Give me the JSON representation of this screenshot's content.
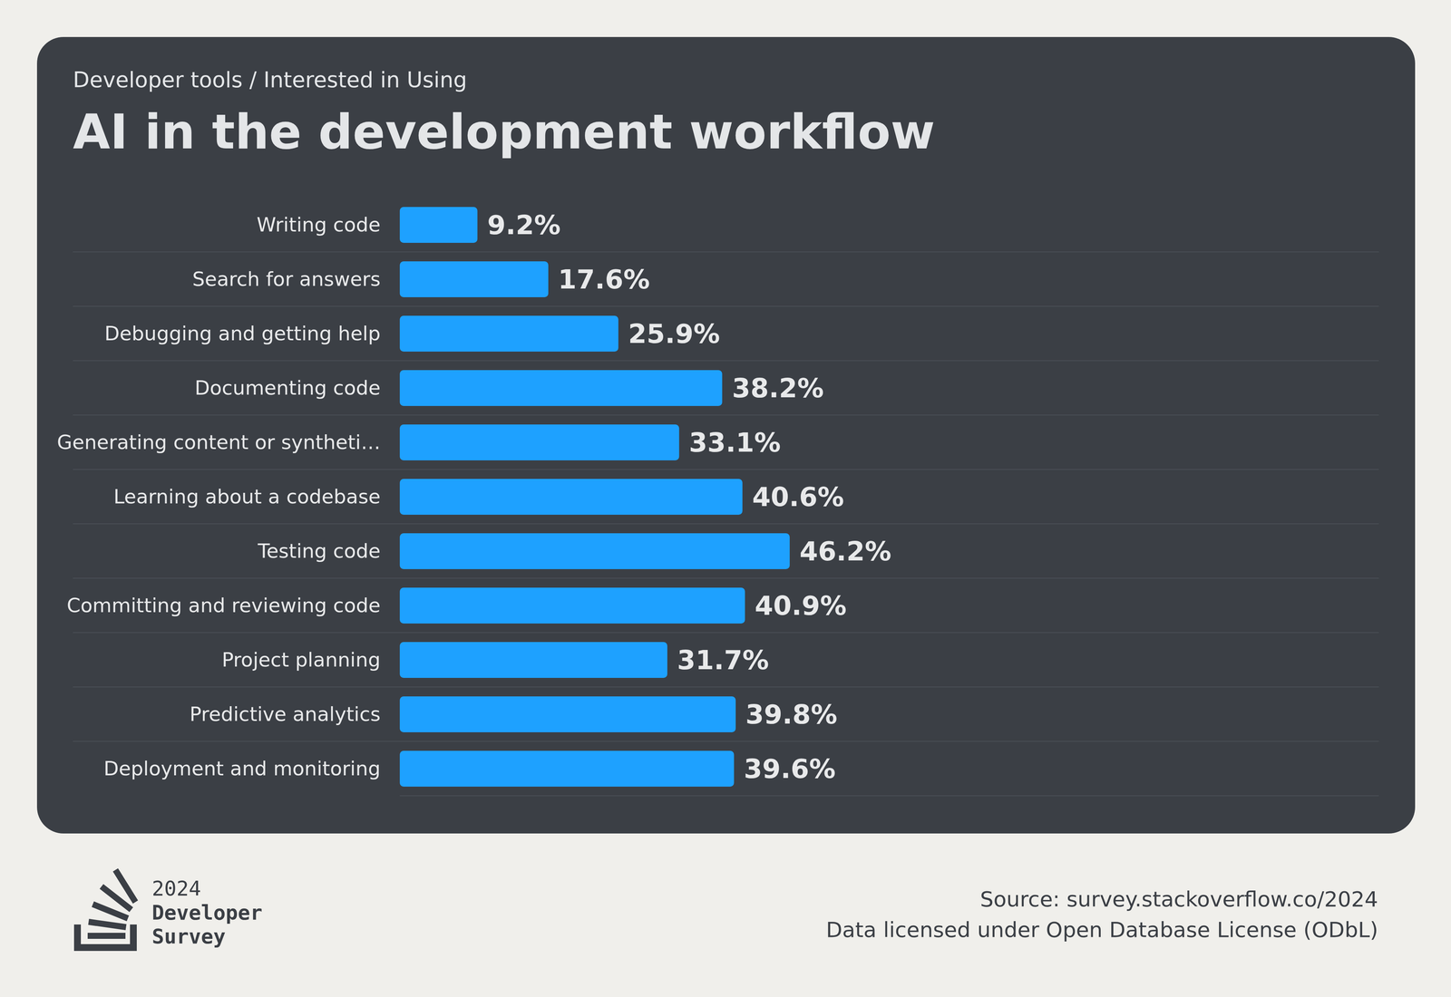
{
  "chart_data": {
    "type": "bar",
    "subtitle": "Developer tools / Interested in Using",
    "title": "AI in the development workflow",
    "orientation": "horizontal",
    "categories": [
      "Writing code",
      "Search for answers",
      "Debugging and getting help",
      "Documenting code",
      "Generating content or syntheti…",
      "Learning about a codebase",
      "Testing code",
      "Committing and reviewing code",
      "Project planning",
      "Predictive analytics",
      "Deployment and monitoring"
    ],
    "values": [
      9.2,
      17.6,
      25.9,
      38.2,
      33.1,
      40.6,
      46.2,
      40.9,
      31.7,
      39.8,
      39.6
    ],
    "value_labels": [
      "9.2%",
      "17.6%",
      "25.9%",
      "38.2%",
      "33.1%",
      "40.6%",
      "46.2%",
      "40.9%",
      "31.7%",
      "39.8%",
      "39.6%"
    ],
    "color": "#1ea1ff",
    "xlim": [
      0,
      116
    ],
    "data_labels": true,
    "tick_labels": "y",
    "grid": true
  },
  "footer": {
    "logo_lines": [
      "2024",
      "Developer",
      "Survey"
    ],
    "source": "Source: survey.stackoverflow.co/2024",
    "license": "Data licensed under Open Database License (ODbL)"
  }
}
